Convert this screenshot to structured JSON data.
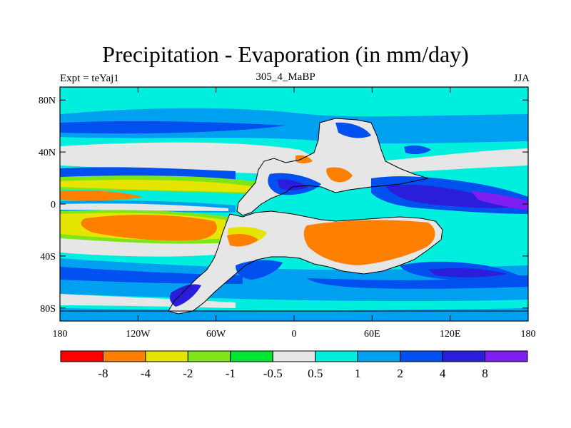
{
  "header": {
    "title": "Precipitation - Evaporation (in mm/day)",
    "left_label": "Expt = teYaj1",
    "center_label": "305_4_MaBP",
    "right_label": "JJA"
  },
  "map": {
    "projection": "cylindrical-equidistant",
    "lon_range": [
      -180,
      180
    ],
    "lat_range": [
      -90,
      90
    ],
    "x_ticks": [
      {
        "lon": -180,
        "label": "180"
      },
      {
        "lon": -120,
        "label": "120W"
      },
      {
        "lon": -60,
        "label": "60W"
      },
      {
        "lon": 0,
        "label": "0"
      },
      {
        "lon": 60,
        "label": "60E"
      },
      {
        "lon": 120,
        "label": "120E"
      },
      {
        "lon": 180,
        "label": "180"
      }
    ],
    "y_ticks": [
      {
        "lat": 80,
        "label": "80N"
      },
      {
        "lat": 40,
        "label": "40N"
      },
      {
        "lat": 0,
        "label": "0"
      },
      {
        "lat": -40,
        "label": "40S"
      },
      {
        "lat": -80,
        "label": "80S"
      }
    ],
    "background_color": "#00eedd"
  },
  "colorbar": {
    "colors": [
      "#ff0000",
      "#ff7f00",
      "#e5e500",
      "#7fe51a",
      "#00e532",
      "#e6e6e6",
      "#00eedd",
      "#00a0f0",
      "#0050f0",
      "#2a1edc",
      "#7f1ef0"
    ],
    "labels": [
      "-8",
      "-4",
      "-2",
      "-1",
      "-0.5",
      "0.5",
      "1",
      "2",
      "4",
      "8"
    ]
  }
}
